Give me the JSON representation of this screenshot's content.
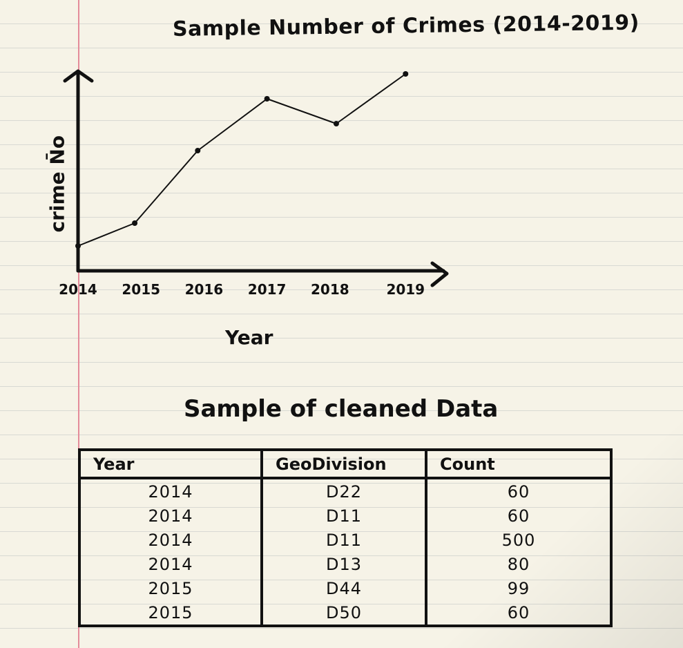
{
  "chart_data": {
    "type": "line",
    "title": "Sample Number of Crimes (2014-2019)",
    "xlabel": "Year",
    "ylabel": "crime N̄o",
    "categories": [
      "2014",
      "2015",
      "2016",
      "2017",
      "2018",
      "2019"
    ],
    "points": [
      {
        "x": 2014,
        "y": 1.2
      },
      {
        "x": 2014.9,
        "y": 2.3
      },
      {
        "x": 2015.9,
        "y": 5.8
      },
      {
        "x": 2017.0,
        "y": 8.3
      },
      {
        "x": 2018.1,
        "y": 7.1
      },
      {
        "x": 2019.2,
        "y": 9.5
      }
    ],
    "xlim": [
      2014,
      2019.8
    ],
    "ylim": [
      0,
      10
    ],
    "grid": false
  },
  "table": {
    "title": "Sample of cleaned Data",
    "headers": [
      "Year",
      "GeoDivision",
      "Count"
    ],
    "rows": [
      [
        "2014",
        "D22",
        "60"
      ],
      [
        "2014",
        "D11",
        "60"
      ],
      [
        "2014",
        "D11",
        "500"
      ],
      [
        "2014",
        "D13",
        "80"
      ],
      [
        "2015",
        "D44",
        "99"
      ],
      [
        "2015",
        "D50",
        "60"
      ]
    ]
  }
}
